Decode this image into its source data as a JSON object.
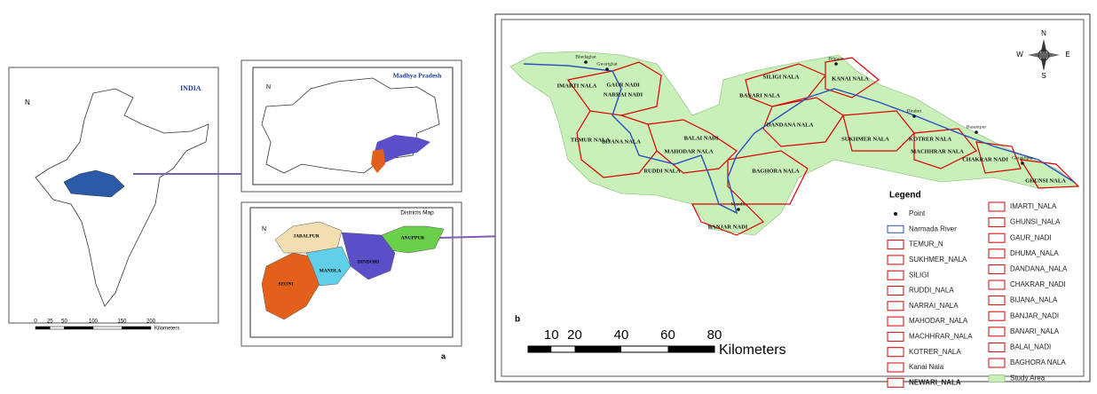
{
  "panel_a": {
    "label": "a",
    "india": {
      "title": "INDIA",
      "north": "N",
      "scale_ticks": [
        0,
        25,
        50,
        100,
        150,
        200
      ],
      "scale_unit": "Kilometers"
    },
    "mp": {
      "title": "Madhya Pradesh",
      "north": "N"
    },
    "districts": {
      "title": "Districts Map",
      "north": "N",
      "names": [
        "JABALPUR",
        "ANUPPUR",
        "SEONI",
        "MANDLA",
        "DINDORI"
      ]
    }
  },
  "panel_b": {
    "label": "b",
    "compass": [
      "N",
      "E",
      "S",
      "W"
    ],
    "subbasins": [
      "GAUR NADI",
      "IMARTI NALA",
      "NARRAI NADI",
      "TEMUR NALA",
      "BIJANA NALA",
      "MAHODAR NALA",
      "BALAI NADI",
      "RUDDI NALA",
      "SILIGI NALA",
      "BANARI NALA",
      "KANAI NALA",
      "DANDANA NALA",
      "SUKHMER NALA",
      "KOTRER NALA",
      "MACHHRAR NALA",
      "CHAKRAR NADI",
      "BAGHORA NALA",
      "BANJAR NADI",
      "GHUNSI NALA"
    ],
    "places": [
      "Bhedaghat",
      "Gwarighat",
      "Bilgaon",
      "Mandla",
      "Dindori",
      "Basantpur",
      "Gorakhpur"
    ],
    "legend": {
      "title": "Legend",
      "left": [
        "Point",
        "Narmada River",
        "TEMUR_N",
        "SUKHMER_NALA",
        "SILIGI",
        "RUDDI_NALA",
        "NARRAI_NALA",
        "MAHODAR_NALA",
        "MACHHRAR_NALA",
        "KOTRER_NALA",
        "Kanai Nala",
        "NEWARI_NALA"
      ],
      "right": [
        "IMARTI_NALA",
        "GHUNSI_NALA",
        "GAUR_NADI",
        "DHUMA_NALA",
        "DANDANA_NALA",
        "CHAKRAR_NADI",
        "BIJANA_NALA",
        "BANJAR_NADI",
        "BANARI_NALA",
        "BALAI_NADI",
        "BAGHORA NALA",
        "Study Area"
      ]
    },
    "scale_ticks": [
      10,
      20,
      40,
      60,
      80
    ],
    "scale_unit": "Kilometers"
  }
}
